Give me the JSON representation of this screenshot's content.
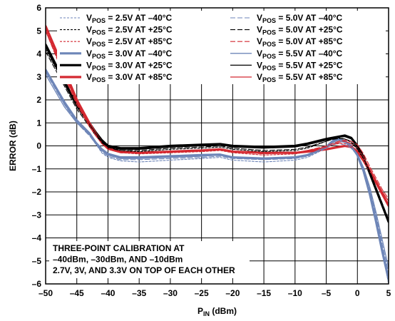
{
  "chart_data": {
    "type": "line",
    "xlabel_main": "P",
    "xlabel_sub": "IN",
    "xlabel_unit": " (dBm)",
    "ylabel": "ERROR (dB)",
    "xlim": [
      -50,
      5
    ],
    "ylim": [
      -6,
      6
    ],
    "grid": true,
    "legend_placement": "top",
    "x_ticks": [
      -50,
      -45,
      -40,
      -35,
      -30,
      -25,
      -20,
      -15,
      -10,
      -5,
      0,
      5
    ],
    "x_tick_labels": [
      "–50",
      "–45",
      "–40",
      "–35",
      "–30",
      "–25",
      "–20",
      "–15",
      "–10",
      "–5",
      "0",
      "5"
    ],
    "y_ticks": [
      6,
      5,
      4,
      3,
      2,
      1,
      0,
      -1,
      -2,
      -3,
      -4,
      -5,
      -6
    ],
    "y_tick_labels": [
      "6",
      "5",
      "4",
      "3",
      "2",
      "1",
      "0",
      "–1",
      "–2",
      "–3",
      "–4",
      "–5",
      "–6"
    ],
    "annotation": [
      "THREE-POINT CALIBRATION AT",
      "–40dBm, –30dBm, AND –10dBm",
      "2.7V, 3V, AND 3.3V ON TOP OF EACH OTHER"
    ],
    "series": [
      {
        "v": "2.5V",
        "t": "–40°C",
        "color": "#6e86b8",
        "dash": "3,2",
        "width": 1.1,
        "x": [
          -50,
          -47,
          -45,
          -43,
          -42,
          -41,
          -40,
          -38,
          -35,
          -30,
          -25,
          -22,
          -20,
          -15,
          -10,
          -8,
          -5,
          -4,
          -3,
          -2,
          -1,
          0,
          1,
          2,
          3,
          4,
          5
        ],
        "y": [
          3.3,
          1.8,
          1.1,
          0.5,
          0.1,
          -0.3,
          -0.5,
          -0.65,
          -0.7,
          -0.62,
          -0.55,
          -0.5,
          -0.62,
          -0.7,
          -0.62,
          -0.5,
          -0.1,
          0.05,
          0.1,
          0.05,
          -0.1,
          -0.4,
          -1.0,
          -2.0,
          -3.2,
          -4.6,
          -6.0
        ]
      },
      {
        "v": "2.5V",
        "t": "+25°C",
        "color": "#000000",
        "dash": "3,2",
        "width": 1.1,
        "x": [
          -50,
          -47,
          -45,
          -43,
          -42,
          -41,
          -40,
          -38,
          -35,
          -30,
          -25,
          -22,
          -20,
          -15,
          -10,
          -8,
          -5,
          -4,
          -3,
          -2,
          -1,
          0,
          1,
          2,
          3,
          4,
          5
        ],
        "y": [
          4.2,
          2.7,
          1.7,
          0.9,
          0.5,
          0.2,
          -0.05,
          -0.2,
          -0.25,
          -0.15,
          -0.1,
          -0.05,
          -0.15,
          -0.25,
          -0.2,
          -0.1,
          0.2,
          0.3,
          0.35,
          0.3,
          0.15,
          -0.15,
          -0.6,
          -1.2,
          -1.9,
          -2.6,
          -3.3
        ]
      },
      {
        "v": "2.5V",
        "t": "+85°C",
        "color": "#d42830",
        "dash": "3,2",
        "width": 1.1,
        "x": [
          -50,
          -47,
          -45,
          -43,
          -42,
          -41,
          -40,
          -38,
          -35,
          -30,
          -25,
          -22,
          -20,
          -15,
          -10,
          -8,
          -5,
          -4,
          -3,
          -2,
          -1,
          0,
          1,
          2,
          3,
          4,
          5
        ],
        "y": [
          5.1,
          3.1,
          1.9,
          0.9,
          0.5,
          0.1,
          -0.1,
          -0.3,
          -0.35,
          -0.3,
          -0.25,
          -0.2,
          -0.3,
          -0.4,
          -0.35,
          -0.25,
          -0.05,
          0.05,
          0.1,
          0.1,
          0.0,
          -0.2,
          -0.6,
          -1.1,
          -1.6,
          -2.1,
          -2.5
        ]
      },
      {
        "v": "3.0V",
        "t": "–40°C",
        "color": "#6e86b8",
        "dash": "",
        "width": 3.2,
        "x": [
          -50,
          -47,
          -45,
          -43,
          -42,
          -41,
          -40,
          -38,
          -35,
          -30,
          -25,
          -22,
          -20,
          -15,
          -10,
          -8,
          -5,
          -4,
          -3,
          -2,
          -1,
          0,
          1,
          2,
          3,
          4,
          5
        ],
        "y": [
          3.3,
          1.9,
          1.1,
          0.55,
          0.15,
          -0.15,
          -0.35,
          -0.5,
          -0.5,
          -0.45,
          -0.4,
          -0.38,
          -0.5,
          -0.55,
          -0.5,
          -0.4,
          -0.05,
          0.2,
          0.3,
          0.2,
          0.0,
          -0.4,
          -1.1,
          -2.1,
          -3.3,
          -4.6,
          -5.8
        ]
      },
      {
        "v": "3.0V",
        "t": "+25°C",
        "color": "#000000",
        "dash": "",
        "width": 3.2,
        "x": [
          -50,
          -47,
          -45,
          -43,
          -42,
          -41,
          -40,
          -38,
          -35,
          -30,
          -25,
          -22,
          -20,
          -15,
          -10,
          -8,
          -5,
          -4,
          -3,
          -2,
          -1,
          0,
          1,
          2,
          3,
          4,
          5
        ],
        "y": [
          4.4,
          2.8,
          1.8,
          1.0,
          0.6,
          0.25,
          0.0,
          -0.1,
          -0.1,
          0.0,
          0.05,
          0.08,
          0.0,
          -0.05,
          0.0,
          0.1,
          0.3,
          0.35,
          0.4,
          0.45,
          0.35,
          0.0,
          -0.5,
          -1.2,
          -1.9,
          -2.6,
          -3.3
        ]
      },
      {
        "v": "3.0V",
        "t": "+85°C",
        "color": "#d42830",
        "dash": "",
        "width": 3.2,
        "x": [
          -50,
          -47,
          -45,
          -43,
          -42,
          -41,
          -40,
          -38,
          -35,
          -30,
          -25,
          -22,
          -20,
          -15,
          -10,
          -8,
          -5,
          -4,
          -3,
          -2,
          -1,
          0,
          1,
          2,
          3,
          4,
          5
        ],
        "y": [
          5.2,
          3.3,
          2.0,
          1.0,
          0.55,
          0.15,
          -0.1,
          -0.25,
          -0.3,
          -0.25,
          -0.2,
          -0.15,
          -0.25,
          -0.3,
          -0.3,
          -0.25,
          -0.15,
          -0.1,
          -0.05,
          0.0,
          -0.05,
          -0.25,
          -0.65,
          -1.1,
          -1.6,
          -2.1,
          -2.6
        ]
      },
      {
        "v": "5.0V",
        "t": "–40°C",
        "color": "#6e86b8",
        "dash": "7,3",
        "width": 1.1,
        "x": [
          -50,
          -47,
          -45,
          -43,
          -42,
          -41,
          -40,
          -38,
          -35,
          -30,
          -25,
          -22,
          -20,
          -15,
          -10,
          -8,
          -5,
          -4,
          -3,
          -2,
          -1,
          0,
          1,
          2,
          3,
          4,
          5
        ],
        "y": [
          3.2,
          1.8,
          1.0,
          0.45,
          0.1,
          -0.25,
          -0.45,
          -0.6,
          -0.6,
          -0.55,
          -0.5,
          -0.45,
          -0.55,
          -0.6,
          -0.55,
          -0.45,
          -0.1,
          0.1,
          0.2,
          0.15,
          -0.05,
          -0.4,
          -1.0,
          -1.9,
          -3.0,
          -4.3,
          -5.5
        ]
      },
      {
        "v": "5.0V",
        "t": "+25°C",
        "color": "#000000",
        "dash": "7,3",
        "width": 1.1,
        "x": [
          -50,
          -47,
          -45,
          -43,
          -42,
          -41,
          -40,
          -38,
          -35,
          -30,
          -25,
          -22,
          -20,
          -15,
          -10,
          -8,
          -5,
          -4,
          -3,
          -2,
          -1,
          0,
          1,
          2,
          3,
          4,
          5
        ],
        "y": [
          4.1,
          2.6,
          1.6,
          0.85,
          0.45,
          0.15,
          -0.1,
          -0.2,
          -0.2,
          -0.1,
          -0.05,
          0.0,
          -0.1,
          -0.2,
          -0.15,
          -0.05,
          0.2,
          0.28,
          0.32,
          0.3,
          0.2,
          -0.1,
          -0.55,
          -1.1,
          -1.8,
          -2.5,
          -3.2
        ]
      },
      {
        "v": "5.0V",
        "t": "+85°C",
        "color": "#d42830",
        "dash": "7,3",
        "width": 1.1,
        "x": [
          -50,
          -47,
          -45,
          -43,
          -42,
          -41,
          -40,
          -38,
          -35,
          -30,
          -25,
          -22,
          -20,
          -15,
          -10,
          -8,
          -5,
          -4,
          -3,
          -2,
          -1,
          0,
          1,
          2,
          3,
          4,
          5
        ],
        "y": [
          5.0,
          3.0,
          1.8,
          0.85,
          0.45,
          0.1,
          -0.1,
          -0.25,
          -0.3,
          -0.25,
          -0.2,
          -0.15,
          -0.25,
          -0.35,
          -0.3,
          -0.2,
          0.0,
          0.1,
          0.2,
          0.25,
          0.2,
          0.05,
          -0.35,
          -0.9,
          -1.4,
          -1.9,
          -2.3
        ]
      },
      {
        "v": "5.5V",
        "t": "–40°C",
        "color": "#6e86b8",
        "dash": "",
        "width": 1.3,
        "x": [
          -50,
          -47,
          -45,
          -43,
          -42,
          -41,
          -40,
          -38,
          -35,
          -30,
          -25,
          -22,
          -20,
          -15,
          -10,
          -8,
          -5,
          -4,
          -3,
          -2,
          -1,
          0,
          1,
          2,
          3,
          4,
          5
        ],
        "y": [
          3.1,
          1.7,
          1.0,
          0.5,
          0.1,
          -0.2,
          -0.4,
          -0.55,
          -0.55,
          -0.5,
          -0.45,
          -0.4,
          -0.5,
          -0.55,
          -0.5,
          -0.4,
          -0.05,
          0.15,
          0.25,
          0.2,
          0.0,
          -0.35,
          -0.95,
          -1.8,
          -2.9,
          -4.1,
          -5.3
        ]
      },
      {
        "v": "5.5V",
        "t": "+25°C",
        "color": "#000000",
        "dash": "",
        "width": 1.3,
        "x": [
          -50,
          -47,
          -45,
          -43,
          -42,
          -41,
          -40,
          -38,
          -35,
          -30,
          -25,
          -22,
          -20,
          -15,
          -10,
          -8,
          -5,
          -4,
          -3,
          -2,
          -1,
          0,
          1,
          2,
          3,
          4,
          5
        ],
        "y": [
          4.3,
          2.7,
          1.7,
          0.95,
          0.55,
          0.2,
          -0.05,
          -0.15,
          -0.15,
          -0.05,
          0.0,
          0.05,
          -0.05,
          -0.1,
          -0.05,
          0.05,
          0.25,
          0.3,
          0.38,
          0.4,
          0.3,
          0.0,
          -0.5,
          -1.15,
          -1.85,
          -2.55,
          -3.25
        ]
      },
      {
        "v": "5.5V",
        "t": "+85°C",
        "color": "#d42830",
        "dash": "",
        "width": 1.3,
        "x": [
          -50,
          -47,
          -45,
          -43,
          -42,
          -41,
          -40,
          -38,
          -35,
          -30,
          -25,
          -22,
          -20,
          -15,
          -10,
          -8,
          -5,
          -4,
          -3,
          -2,
          -1,
          0,
          1,
          2,
          3,
          4,
          5
        ],
        "y": [
          5.0,
          3.1,
          1.9,
          0.9,
          0.5,
          0.1,
          -0.15,
          -0.3,
          -0.3,
          -0.25,
          -0.2,
          -0.15,
          -0.25,
          -0.3,
          -0.3,
          -0.2,
          -0.05,
          0.05,
          0.15,
          0.2,
          0.1,
          -0.1,
          -0.5,
          -1.0,
          -1.5,
          -2.0,
          -2.4
        ]
      }
    ]
  }
}
